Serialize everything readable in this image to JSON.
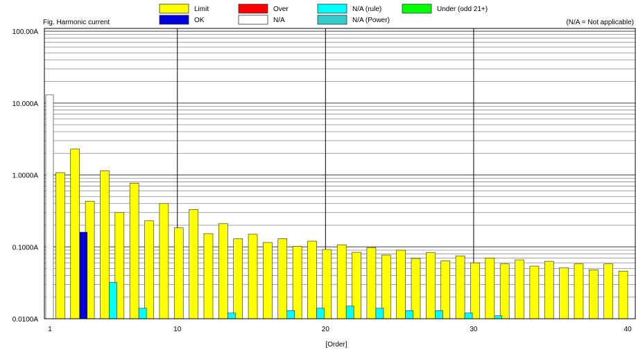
{
  "legend": [
    {
      "label": "Limit",
      "color": "#ffff00"
    },
    {
      "label": "Over",
      "color": "#ff0000"
    },
    {
      "label": "N/A (rule)",
      "color": "#00ffff"
    },
    {
      "label": "Under (odd 21+)",
      "color": "#00ff00"
    },
    {
      "label": "OK",
      "color": "#0000dd"
    },
    {
      "label": "N/A",
      "color": "#ffffff"
    },
    {
      "label": "N/A (Power)",
      "color": "#33cccc"
    }
  ],
  "chart_data": {
    "type": "bar",
    "title": "Fig. Harmonic current",
    "note": "(N/A = Not applicable)",
    "xlabel": "[Order]",
    "ylabel": "",
    "x_ticks": [
      "1",
      "10",
      "20",
      "30",
      "40"
    ],
    "y_ticks": [
      "0.0100A",
      "0.1000A",
      "1.0000A",
      "10.000A",
      "100.00A"
    ],
    "ylim": [
      0.01,
      100
    ],
    "xlim": [
      1,
      40
    ],
    "y_scale": "log",
    "grid": true,
    "orders": [
      2,
      3,
      4,
      5,
      6,
      7,
      8,
      9,
      10,
      11,
      12,
      13,
      14,
      15,
      16,
      17,
      18,
      19,
      20,
      21,
      22,
      23,
      24,
      25,
      26,
      27,
      28,
      29,
      30,
      31,
      32,
      33,
      34,
      35,
      36,
      37,
      38,
      39,
      40
    ],
    "series": [
      {
        "name": "Limit",
        "color": "#ffff00",
        "x": [
          2,
          3,
          4,
          5,
          6,
          7,
          8,
          9,
          10,
          11,
          12,
          13,
          14,
          15,
          16,
          17,
          18,
          19,
          20,
          21,
          22,
          23,
          24,
          25,
          26,
          27,
          28,
          29,
          30,
          31,
          32,
          33,
          34,
          35,
          36,
          37,
          38,
          39,
          40
        ],
        "values": [
          1.08,
          2.3,
          0.43,
          1.14,
          0.3,
          0.77,
          0.23,
          0.4,
          0.184,
          0.33,
          0.153,
          0.21,
          0.13,
          0.15,
          0.115,
          0.13,
          0.102,
          0.12,
          0.092,
          0.107,
          0.084,
          0.098,
          0.077,
          0.09,
          0.069,
          0.083,
          0.064,
          0.075,
          0.06,
          0.07,
          0.058,
          0.066,
          0.054,
          0.063,
          0.051,
          0.058,
          0.048,
          0.058,
          0.046
        ]
      },
      {
        "name": "OK",
        "color": "#0000dd",
        "x": [
          3
        ],
        "values": [
          0.16
        ]
      },
      {
        "name": "N/A (rule)",
        "color": "#00ffff",
        "x": [
          5,
          7,
          13,
          17,
          19,
          21,
          23,
          25,
          27,
          29,
          31
        ],
        "values": [
          0.032,
          0.014,
          0.012,
          0.013,
          0.014,
          0.015,
          0.014,
          0.013,
          0.013,
          0.012,
          0.011
        ]
      },
      {
        "name": "N/A",
        "color": "#ffffff",
        "x": [
          1
        ],
        "values": [
          13
        ]
      }
    ]
  }
}
